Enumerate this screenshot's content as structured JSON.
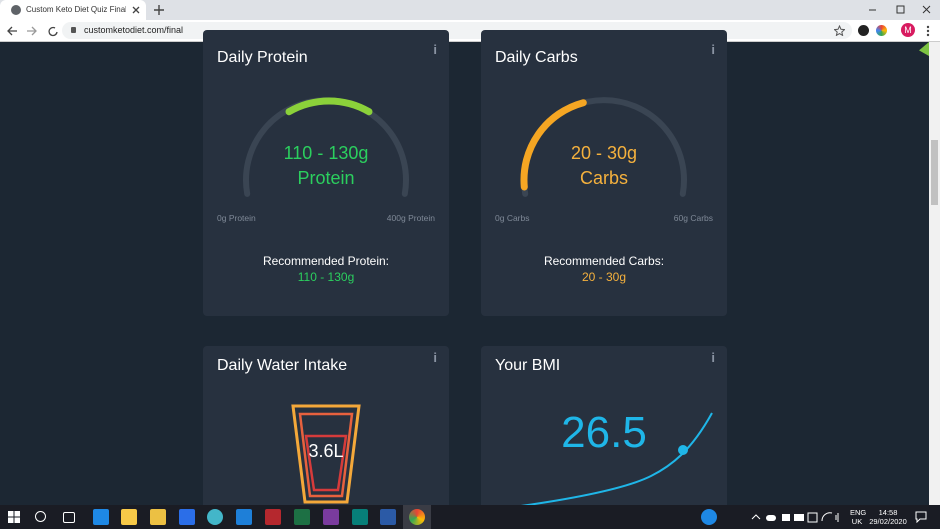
{
  "browser": {
    "tab_title": "Custom Keto Diet Quiz Final Pag",
    "url": "customketodiet.com/final",
    "profile_initial": "M"
  },
  "info_icon": "i",
  "cards": [
    {
      "title": "Daily Protein",
      "gauge_value": "110 - 130g",
      "gauge_unit": "Protein",
      "min_label": "0g Protein",
      "max_label": "400g Protein",
      "recommended_label": "Recommended Protein:",
      "recommended_value": "110 - 130g"
    },
    {
      "title": "Daily Carbs",
      "gauge_value": "20 - 30g",
      "gauge_unit": "Carbs",
      "min_label": "0g Carbs",
      "max_label": "60g Carbs",
      "recommended_label": "Recommended Carbs:",
      "recommended_value": "20 - 30g"
    }
  ],
  "water": {
    "title": "Daily Water Intake",
    "value": "3.6L"
  },
  "bmi": {
    "title": "Your BMI",
    "value": "26.5"
  },
  "taskbar": {
    "language": "ENG",
    "region": "UK",
    "time": "14:58",
    "date": "29/02/2020"
  }
}
